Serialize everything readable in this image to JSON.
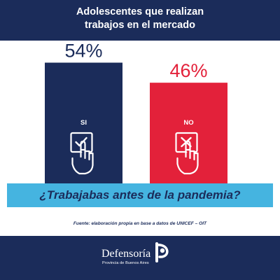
{
  "header": {
    "title_line1": "Adolescentes que realizan",
    "title_line2": "trabajos en el mercado"
  },
  "chart_data": {
    "type": "bar",
    "title": "Adolescentes que realizan trabajos en el mercado",
    "categories": [
      "SI",
      "NO"
    ],
    "values": [
      54,
      46
    ],
    "value_labels": [
      "54%",
      "46%"
    ],
    "colors": [
      "#1b2c5a",
      "#e3213a"
    ],
    "ylim": [
      0,
      60
    ],
    "icons": [
      "checkbox-check-hand-icon",
      "checkbox-x-hand-icon"
    ]
  },
  "banner": {
    "text": "¿Trabajabas antes de la pandemia?"
  },
  "source": {
    "text": "Fuente: elaboración propia en base a datos de UNICEF – OIT"
  },
  "footer": {
    "logo_word": "Defensoría",
    "logo_sub": "Provincia de Buenos Aires",
    "logo_icon": "defensoria-logo-icon"
  },
  "colors": {
    "navy": "#1b2c5a",
    "red": "#e3213a",
    "sky": "#45b4e0",
    "white": "#ffffff"
  }
}
